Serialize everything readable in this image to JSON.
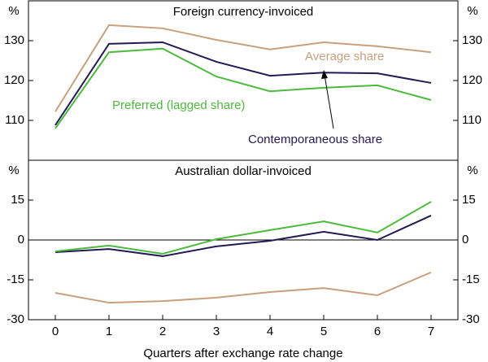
{
  "chart_data": [
    {
      "type": "line",
      "title": "Foreign currency-invoiced",
      "unit": "%",
      "xlim": [
        -0.5,
        7.5
      ],
      "x": [
        0,
        1,
        2,
        3,
        4,
        5,
        6,
        7
      ],
      "ylim": [
        100,
        140
      ],
      "yticks": [
        110,
        120,
        130
      ],
      "series": [
        {
          "name": "Average share",
          "color": "#c9a07c",
          "values": [
            112.2,
            133.9,
            133.1,
            130.2,
            127.8,
            129.6,
            128.6,
            127.1
          ]
        },
        {
          "name": "Contemporaneous share",
          "color": "#261a55",
          "values": [
            108.8,
            129.2,
            129.6,
            124.7,
            121.2,
            122.0,
            121.8,
            119.4
          ]
        },
        {
          "name": "Preferred (lagged share)",
          "color": "#4cbb3c",
          "values": [
            108.0,
            127.1,
            128.0,
            121.0,
            117.3,
            118.2,
            118.8,
            115.1
          ]
        }
      ]
    },
    {
      "type": "line",
      "title": "Australian dollar-invoiced",
      "unit": "%",
      "xlim": [
        -0.5,
        7.5
      ],
      "x": [
        0,
        1,
        2,
        3,
        4,
        5,
        6,
        7
      ],
      "xticks": [
        0,
        1,
        2,
        3,
        4,
        5,
        6,
        7
      ],
      "xlabel": "Quarters after exchange rate change",
      "ylim": [
        -30,
        30
      ],
      "yticks": [
        -30,
        -15,
        0,
        15
      ],
      "zero_line": true,
      "series": [
        {
          "color": "#c9a07c",
          "values": [
            -19.9,
            -23.6,
            -23.0,
            -21.7,
            -19.6,
            -18.1,
            -20.8,
            -12.2
          ]
        },
        {
          "color": "#261a55",
          "values": [
            -4.6,
            -3.4,
            -6.1,
            -2.4,
            -0.3,
            3.1,
            0.0,
            9.2
          ]
        },
        {
          "color": "#4cbb3c",
          "values": [
            -4.3,
            -2.1,
            -5.2,
            0.3,
            3.7,
            7.0,
            2.8,
            14.4
          ]
        }
      ]
    }
  ]
}
